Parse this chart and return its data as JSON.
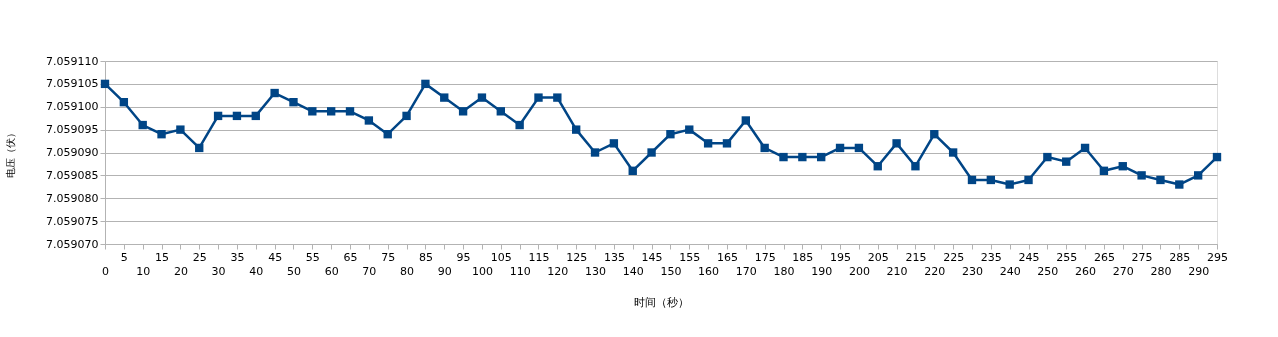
{
  "chart_data": {
    "type": "line",
    "xlabel": "时间（秒）",
    "ylabel": "电压（伏）",
    "categories": [
      "0",
      "5",
      "10",
      "15",
      "20",
      "25",
      "30",
      "35",
      "40",
      "45",
      "50",
      "55",
      "60",
      "65",
      "70",
      "75",
      "80",
      "85",
      "90",
      "95",
      "100",
      "105",
      "110",
      "115",
      "120",
      "125",
      "130",
      "135",
      "140",
      "145",
      "150",
      "155",
      "160",
      "165",
      "170",
      "175",
      "180",
      "185",
      "190",
      "195",
      "200",
      "205",
      "210",
      "215",
      "220",
      "225",
      "230",
      "235",
      "240",
      "245",
      "250",
      "255",
      "260",
      "265",
      "270",
      "275",
      "280",
      "285",
      "290",
      "295"
    ],
    "series": [
      {
        "color": "#004586",
        "values": [
          7.059105,
          7.059101,
          7.059096,
          7.059094,
          7.059095,
          7.059091,
          7.059098,
          7.059098,
          7.059098,
          7.059103,
          7.059101,
          7.059099,
          7.059099,
          7.059099,
          7.059097,
          7.059094,
          7.059098,
          7.059105,
          7.059102,
          7.059099,
          7.059102,
          7.059099,
          7.059096,
          7.059102,
          7.059102,
          7.059095,
          7.05909,
          7.059092,
          7.059086,
          7.05909,
          7.059094,
          7.059095,
          7.059092,
          7.059092,
          7.059097,
          7.059091,
          7.059089,
          7.059089,
          7.059089,
          7.059091,
          7.059091,
          7.059087,
          7.059092,
          7.059087,
          7.059094,
          7.05909,
          7.059084,
          7.059084,
          7.059083,
          7.059084,
          7.059089,
          7.059088,
          7.059091,
          7.059086,
          7.059087,
          7.059085,
          7.059084,
          7.059083,
          7.059085,
          7.059089
        ]
      }
    ],
    "ylim": [
      7.05907,
      7.05911
    ],
    "yticks": [
      {
        "value": 7.05907,
        "label": "7.059070"
      },
      7.059075,
      {
        "value": 7.05908,
        "label": "7.059080"
      },
      7.059085,
      {
        "value": 7.05909,
        "label": "7.059090"
      },
      7.059095,
      {
        "value": 7.0591,
        "label": "7.059100"
      },
      7.059105,
      {
        "value": 7.05911,
        "label": "7.059110"
      }
    ],
    "grid": "y",
    "marker": "square",
    "line_style": "solid"
  }
}
